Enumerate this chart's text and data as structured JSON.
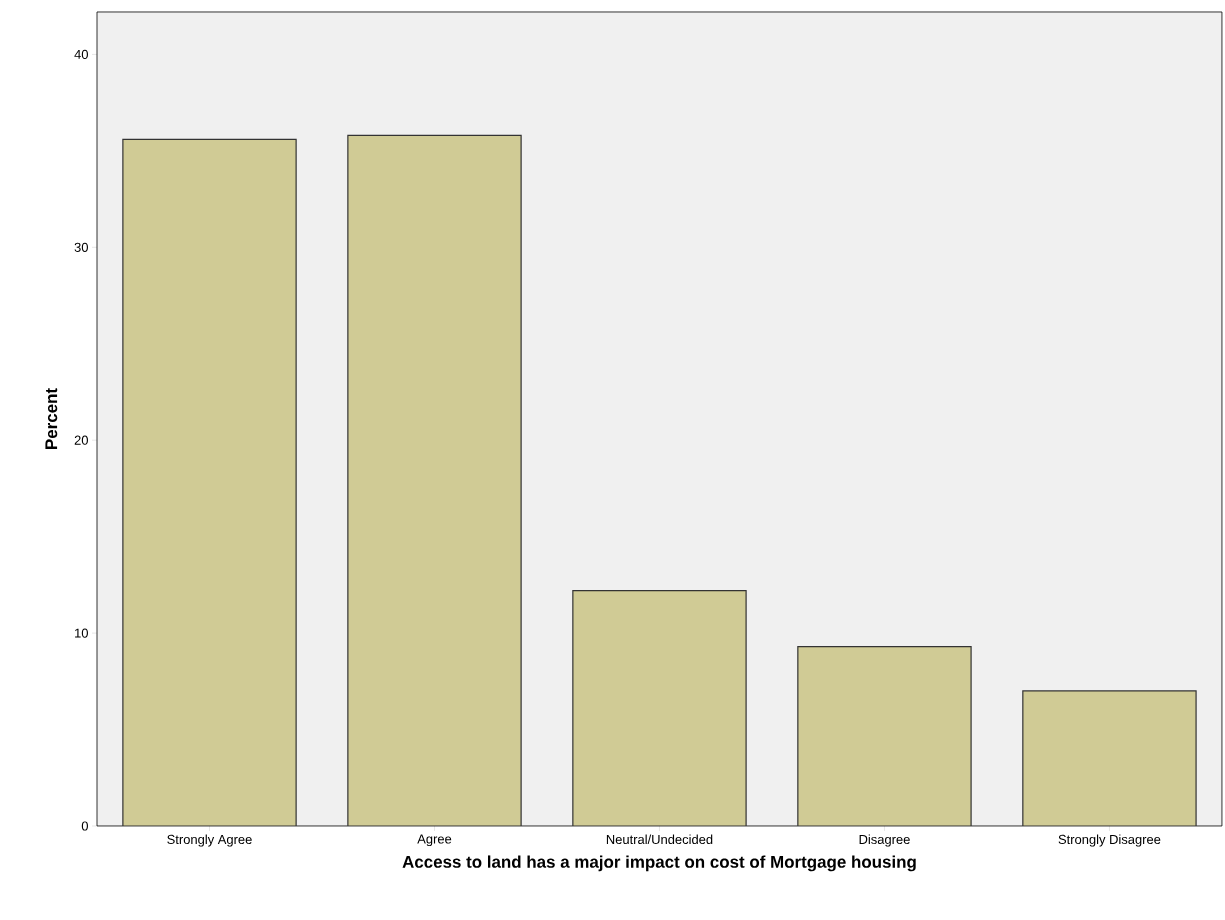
{
  "chart_data": {
    "type": "bar",
    "xlabel": "Access to land has a major impact on cost of Mortgage housing",
    "ylabel": "Percent",
    "categories": [
      "Strongly Agree",
      "Agree",
      "Neutral/Undecided",
      "Disagree",
      "Strongly Disagree"
    ],
    "values": [
      35.6,
      35.8,
      12.2,
      9.3,
      7.0
    ],
    "color": "#d0cb95",
    "ylim": [
      0,
      42.2
    ],
    "yticks": [
      0,
      10,
      20,
      30,
      40
    ]
  }
}
